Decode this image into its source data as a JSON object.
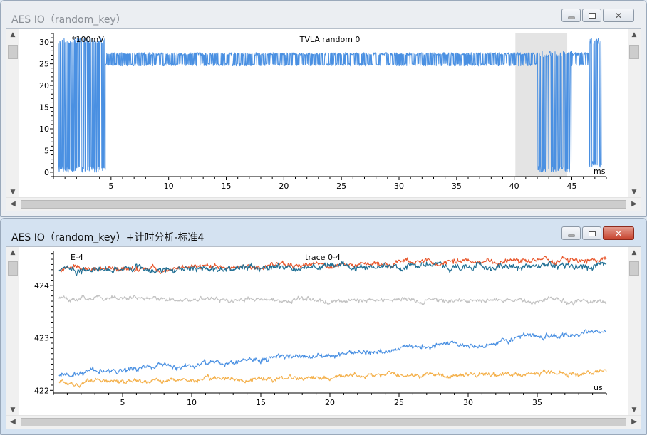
{
  "windows": [
    {
      "title": "AES IO（random_key）",
      "chart_data": {
        "type": "line",
        "title": "TVLA random 0",
        "ylabel": "*100mV",
        "xlabel": "ms",
        "xlim": [
          0,
          48
        ],
        "ylim": [
          -1,
          32
        ],
        "xticks": [
          5,
          10,
          15,
          20,
          25,
          30,
          35,
          40,
          45
        ],
        "yticks": [
          0,
          5,
          10,
          15,
          20,
          25,
          30
        ],
        "highlight_range": [
          40.1,
          44.6
        ],
        "series": [
          {
            "color": "#4a90e2",
            "segments": [
              {
                "x_start": 0.4,
                "x_end": 4.5,
                "pattern": "burst",
                "low": 0,
                "high": 31
              },
              {
                "x_start": 4.5,
                "x_end": 40.1,
                "pattern": "plateau",
                "base": 27,
                "dip": 24.5
              },
              {
                "x_start": 40.1,
                "x_end": 42.0,
                "pattern": "plateau",
                "base": 27,
                "dip": 24.5
              },
              {
                "x_start": 42.0,
                "x_end": 45.0,
                "pattern": "burst",
                "low": 0,
                "high": 28
              },
              {
                "x_start": 45.0,
                "x_end": 46.5,
                "pattern": "plateau",
                "base": 27,
                "dip": 24.5
              },
              {
                "x_start": 46.5,
                "x_end": 47.6,
                "pattern": "burst",
                "low": 1,
                "high": 31
              }
            ]
          }
        ]
      }
    },
    {
      "title": "AES IO（random_key）+计时分析-标准4",
      "chart_data": {
        "type": "line",
        "title": "trace 0-4",
        "ylabel": "E-4",
        "xlabel": "us",
        "xlim": [
          0,
          40
        ],
        "ylim": [
          421.95,
          424.65
        ],
        "xticks": [
          5,
          10,
          15,
          20,
          25,
          30,
          35
        ],
        "yticks": [
          422,
          423,
          424
        ],
        "series": [
          {
            "color": "#e8552a",
            "start": 424.3,
            "end": 424.5,
            "noise": 0.06
          },
          {
            "color": "#1f6f94",
            "start": 424.3,
            "end": 424.38,
            "noise": 0.07
          },
          {
            "color": "#c2c2c2",
            "start": 423.75,
            "end": 423.7,
            "noise": 0.05
          },
          {
            "color": "#4a90e2",
            "start": 422.3,
            "end": 423.1,
            "noise": 0.06
          },
          {
            "color": "#f4b04a",
            "start": 422.15,
            "end": 422.35,
            "noise": 0.05
          }
        ]
      }
    }
  ],
  "controls": {
    "minimize_glyph": "▭",
    "maximize_glyph": "□",
    "close_glyph": "✕"
  },
  "scroll": {
    "up": "▲",
    "down": "▼",
    "left": "◀",
    "right": "▶"
  }
}
